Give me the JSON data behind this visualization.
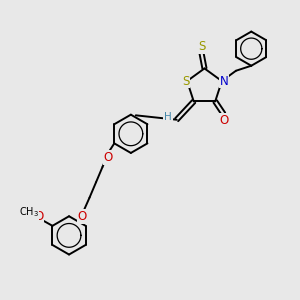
{
  "bg_color": "#e8e8e8",
  "bond_color": "#000000",
  "bond_width": 1.4,
  "atom_colors": {
    "S": "#999900",
    "N": "#0000cc",
    "O": "#cc0000",
    "H": "#4488aa",
    "C": "#000000"
  },
  "font_size": 8.5,
  "fig_width": 3.0,
  "fig_height": 3.0,
  "dpi": 100
}
